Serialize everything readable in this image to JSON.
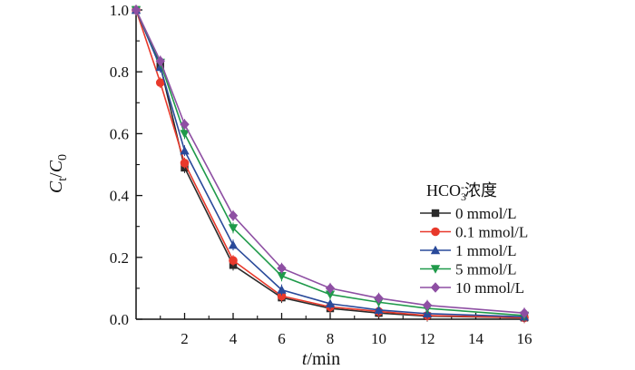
{
  "chart_data": {
    "type": "line",
    "title": "",
    "xlabel": "t/min",
    "xlabel_parts": {
      "italic": "t",
      "normal": "/min"
    },
    "ylabel": "Ct/C0",
    "ylabel_parts": {
      "main1": "C",
      "sub1": "t",
      "slash": "/",
      "main2": "C",
      "sub2": "0"
    },
    "xlim": [
      0,
      16
    ],
    "ylim": [
      0,
      1.0
    ],
    "x_ticks": [
      2,
      4,
      6,
      8,
      10,
      12,
      14,
      16
    ],
    "x_tick_labels": [
      "2",
      "4",
      "6",
      "8",
      "10",
      "12",
      "14",
      "16"
    ],
    "x_minor_ticks": [
      1,
      3,
      5,
      7,
      9,
      11,
      13,
      15
    ],
    "y_ticks": [
      0.0,
      0.2,
      0.4,
      0.6,
      0.8,
      1.0
    ],
    "y_tick_labels": [
      "0.0",
      "0.2",
      "0.4",
      "0.6",
      "0.8",
      "1.0"
    ],
    "y_minor_ticks": [
      0.1,
      0.3,
      0.5,
      0.7,
      0.9
    ],
    "grid": false,
    "legend": {
      "placement": "center-right",
      "title_main": "HCO",
      "title_sub": "3",
      "title_sup": "-",
      "title_suffix": "浓度"
    },
    "x": [
      0,
      1,
      2,
      4,
      6,
      8,
      10,
      12,
      16
    ],
    "series": [
      {
        "name": "0 mmol/L",
        "color": "#2b2b2b",
        "marker": "square",
        "values": [
          1.0,
          0.82,
          0.49,
          0.175,
          0.07,
          0.035,
          0.02,
          0.01,
          0.005
        ]
      },
      {
        "name": "0.1 mmol/L",
        "color": "#e8392b",
        "marker": "circle",
        "values": [
          1.0,
          0.765,
          0.505,
          0.19,
          0.075,
          0.04,
          0.025,
          0.012,
          0.005
        ]
      },
      {
        "name": "1 mmol/L",
        "color": "#2a4a9a",
        "marker": "triangle-up",
        "values": [
          1.0,
          0.815,
          0.545,
          0.24,
          0.095,
          0.05,
          0.03,
          0.018,
          0.008
        ]
      },
      {
        "name": "5 mmol/L",
        "color": "#1f9a4a",
        "marker": "triangle-down",
        "values": [
          1.0,
          0.83,
          0.6,
          0.295,
          0.14,
          0.08,
          0.055,
          0.035,
          0.012
        ]
      },
      {
        "name": "10 mmol/L",
        "color": "#8e4fa3",
        "marker": "diamond",
        "values": [
          1.0,
          0.835,
          0.63,
          0.335,
          0.165,
          0.1,
          0.068,
          0.045,
          0.02
        ]
      }
    ]
  }
}
